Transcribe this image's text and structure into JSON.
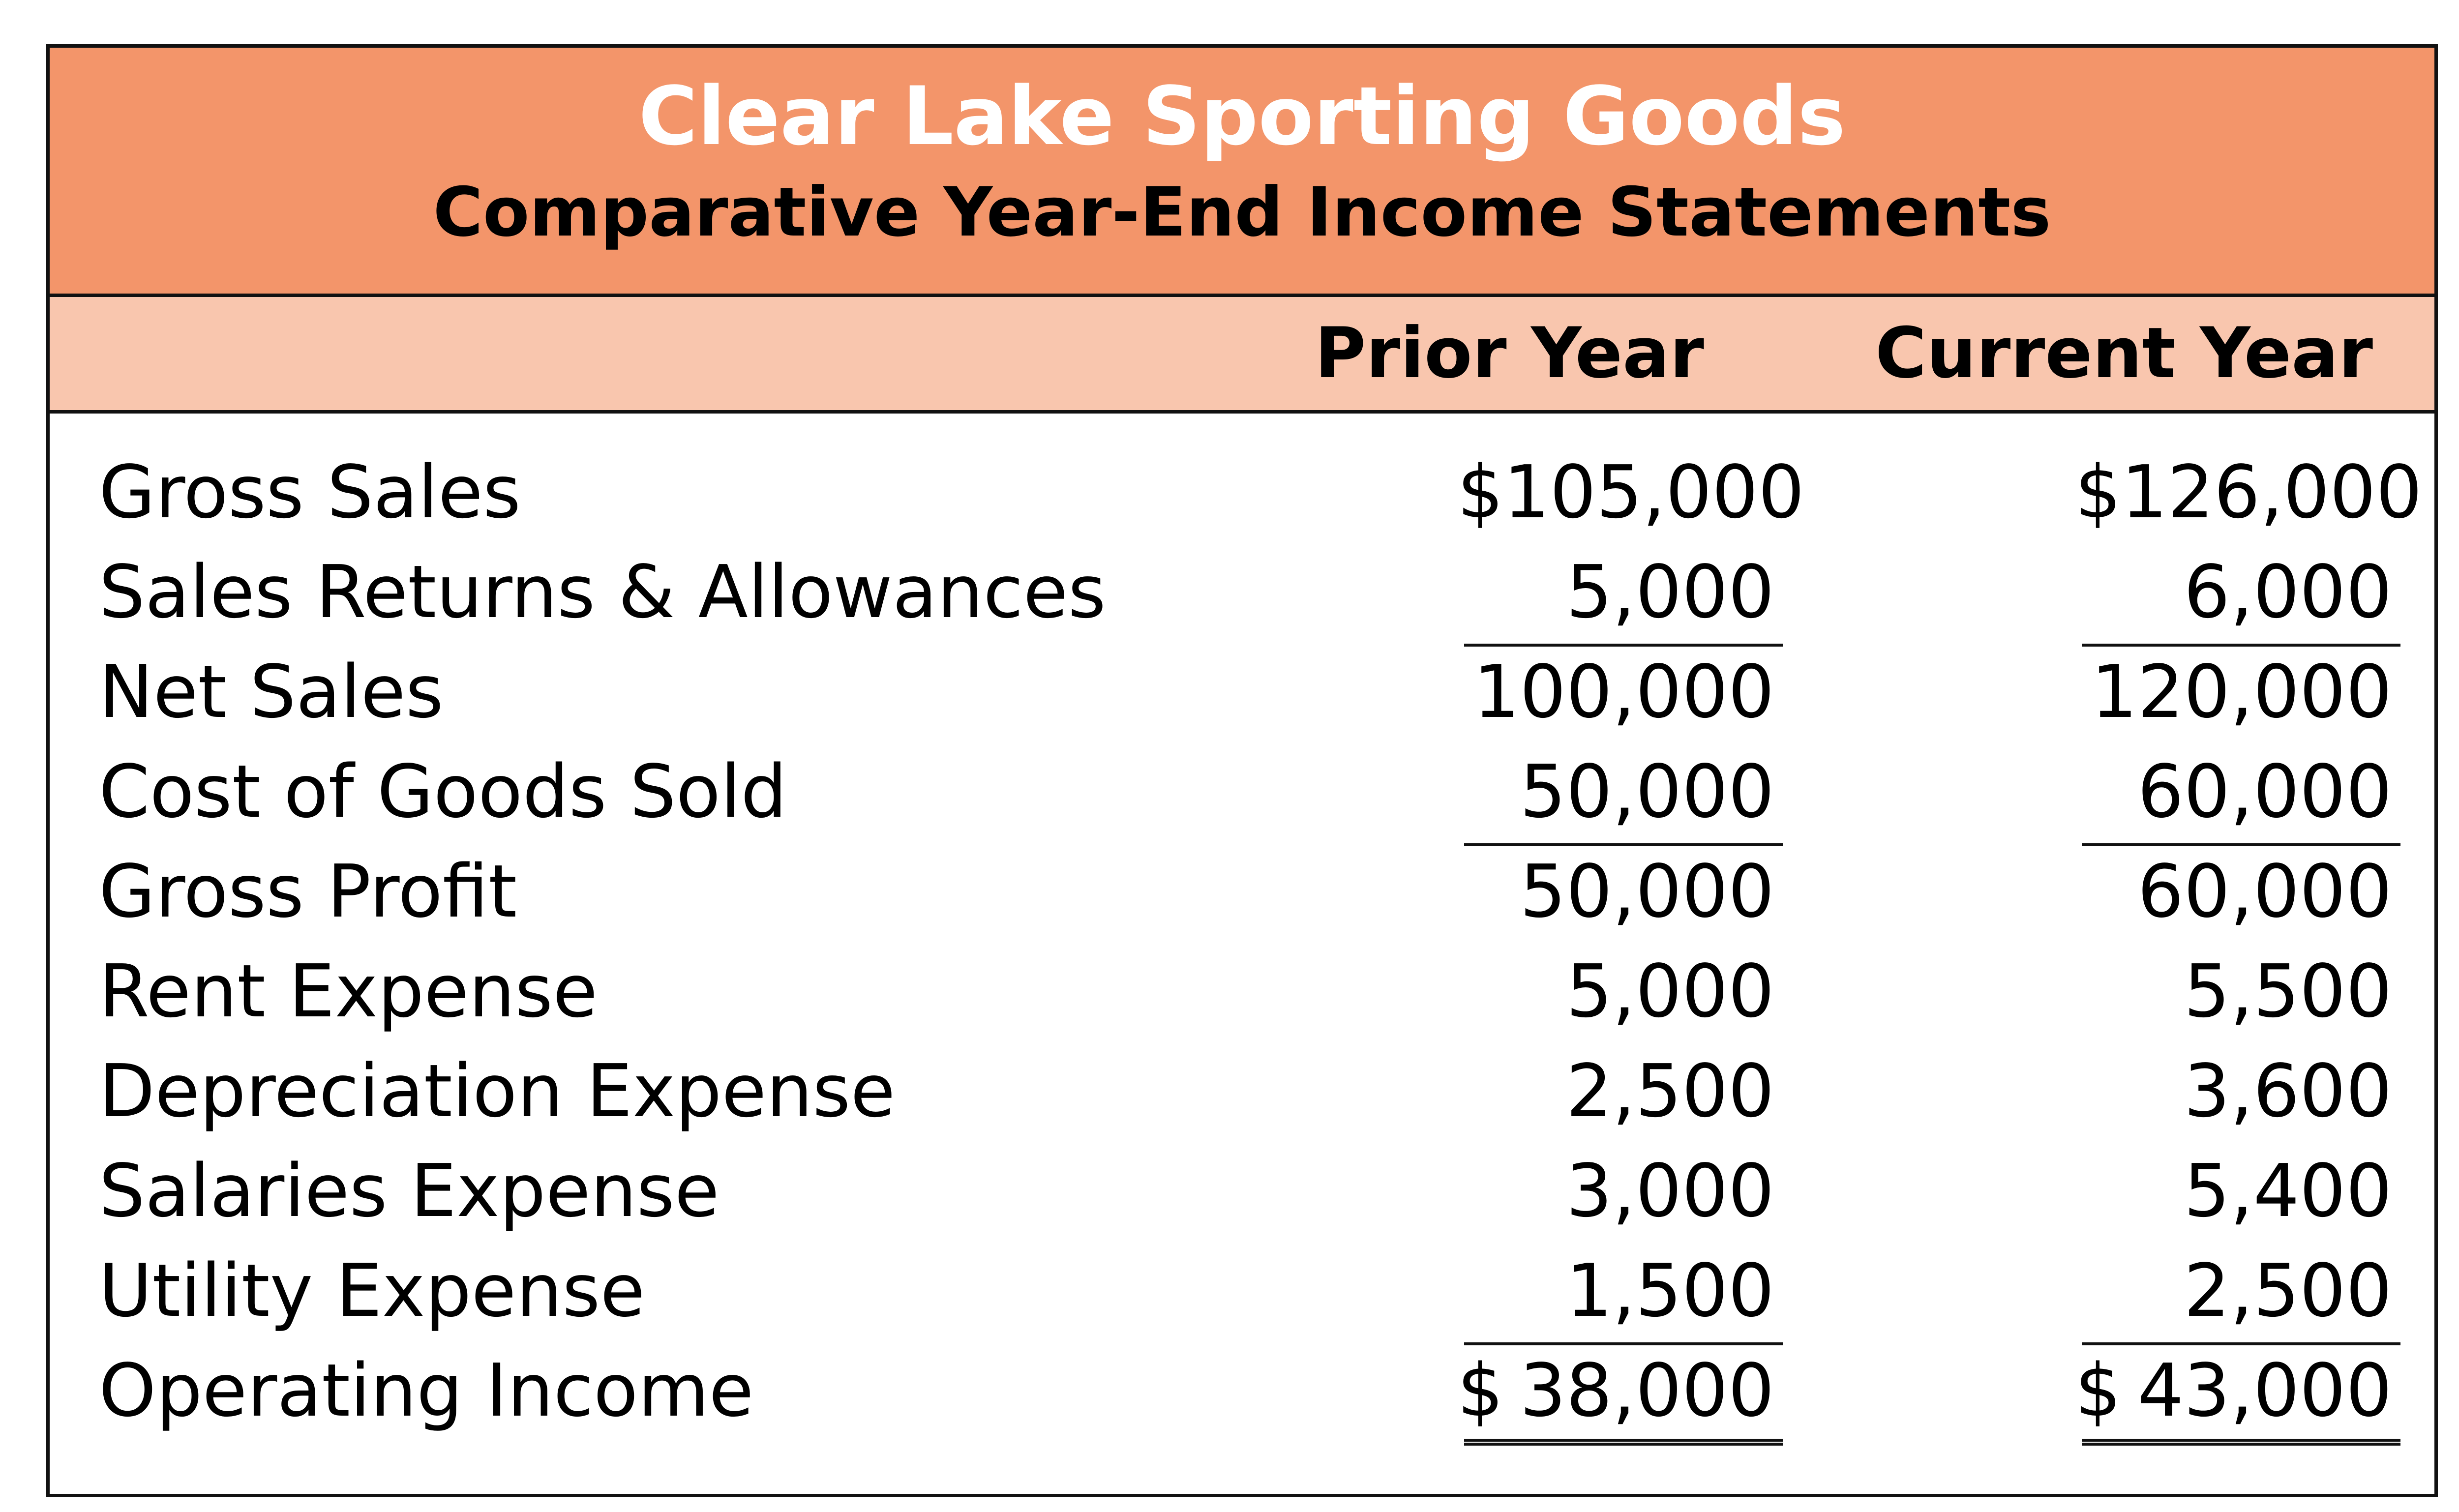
{
  "header": {
    "company": "Clear Lake Sporting Goods",
    "statement_title": "Comparative Year-End Income Statements"
  },
  "columns": {
    "prior": "Prior Year",
    "current": "Current Year"
  },
  "rows": [
    {
      "label": "Gross Sales",
      "prior": "$105,000",
      "current": "$126,000"
    },
    {
      "label": "Sales Returns & Allowances",
      "prior": "5,000",
      "current": "6,000"
    },
    {
      "label": "Net Sales",
      "prior": "100,000",
      "current": "120,000"
    },
    {
      "label": "Cost of Goods Sold",
      "prior": "50,000",
      "current": "60,000"
    },
    {
      "label": "Gross Profit",
      "prior": "50,000",
      "current": "60,000"
    },
    {
      "label": "Rent Expense",
      "prior": "5,000",
      "current": "5,500"
    },
    {
      "label": "Depreciation Expense",
      "prior": "2,500",
      "current": "3,600"
    },
    {
      "label": "Salaries Expense",
      "prior": "3,000",
      "current": "5,400"
    },
    {
      "label": "Utility Expense",
      "prior": "1,500",
      "current": "2,500"
    },
    {
      "label": "Operating Income",
      "prior_symbol": "$",
      "prior": "38,000",
      "current_symbol": "$",
      "current": "43,000"
    }
  ]
}
